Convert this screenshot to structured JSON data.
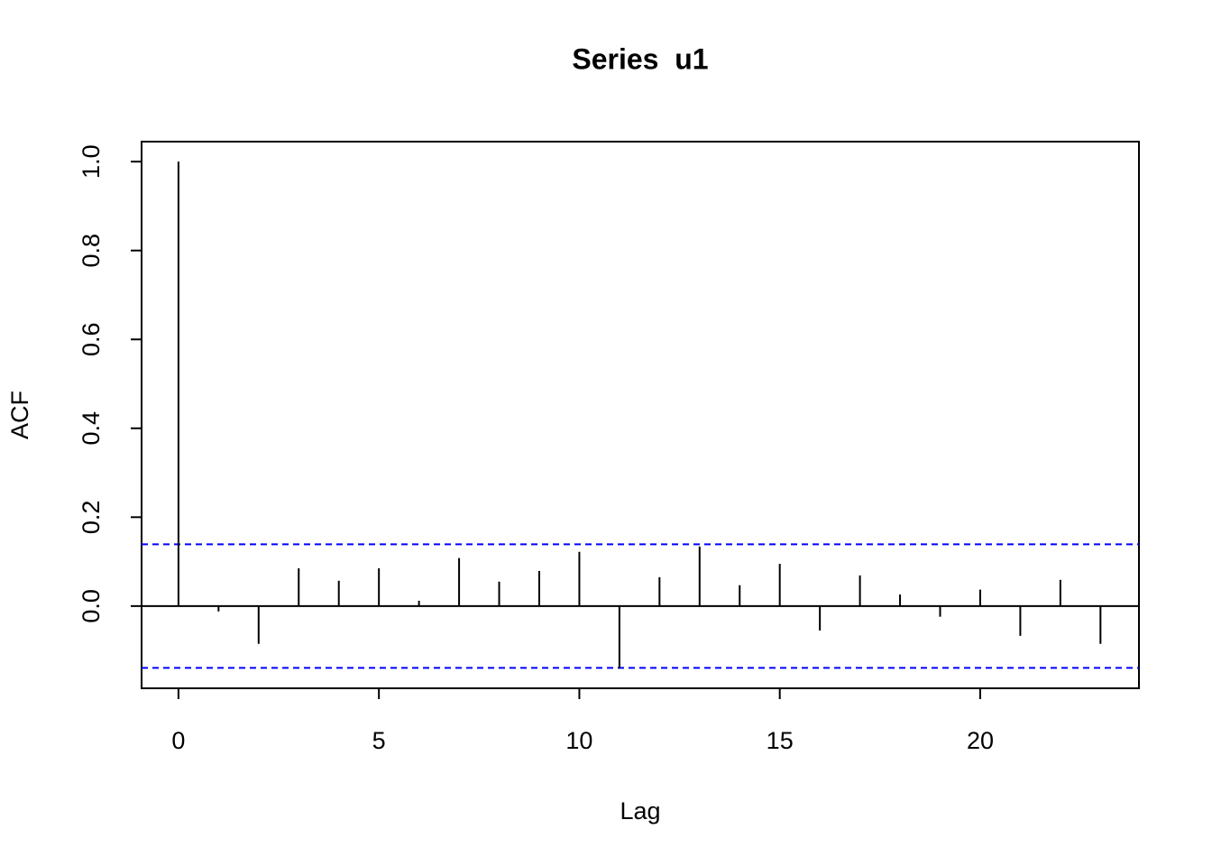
{
  "chart_data": {
    "type": "acf",
    "title": "Series  u1",
    "xlabel": "Lag",
    "ylabel": "ACF",
    "x": [
      0,
      1,
      2,
      3,
      4,
      5,
      6,
      7,
      8,
      9,
      10,
      11,
      12,
      13,
      14,
      15,
      16,
      17,
      18,
      19,
      20,
      21,
      22,
      23
    ],
    "values": [
      1.0,
      -0.012,
      -0.085,
      0.085,
      0.057,
      0.085,
      0.012,
      0.108,
      0.055,
      0.079,
      0.122,
      -0.14,
      0.065,
      0.134,
      0.047,
      0.095,
      -0.055,
      0.069,
      0.026,
      -0.024,
      0.037,
      -0.067,
      0.059,
      -0.085
    ],
    "color": "#000000",
    "confidence_bounds": [
      0.139,
      -0.139
    ],
    "confidence_color": "#0000ff",
    "xlim": [
      -0.92,
      23.96
    ],
    "ylim": [
      -0.185,
      1.045
    ],
    "xticks": [
      0,
      5,
      10,
      15,
      20
    ],
    "yticks": [
      {
        "value": 0,
        "label": "0.0"
      },
      0.2,
      0.4,
      0.6,
      0.8,
      {
        "value": 1,
        "label": "1.0"
      }
    ]
  }
}
